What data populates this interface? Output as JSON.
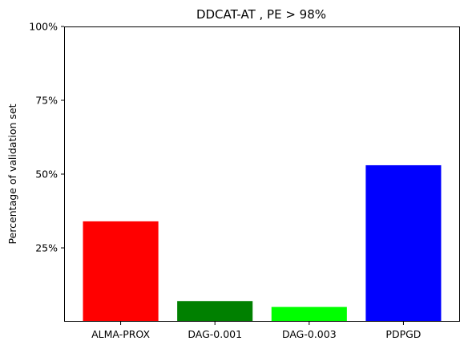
{
  "chart_data": {
    "type": "bar",
    "title": "DDCAT-AT , PE > 98%",
    "xlabel": "",
    "ylabel": "Percentage of validation set",
    "categories": [
      "ALMA-PROX",
      "DAG-0.001",
      "DAG-0.003",
      "PDPGD"
    ],
    "values": [
      34,
      7,
      5,
      53
    ],
    "colors": [
      "#ff0000",
      "#008000",
      "#00ff00",
      "#0000ff"
    ],
    "ylim": [
      0,
      100
    ],
    "yticks": [
      25,
      50,
      75,
      100
    ],
    "ytick_labels": [
      "25%",
      "50%",
      "75%",
      "100%"
    ],
    "grid": false,
    "legend": "none"
  }
}
